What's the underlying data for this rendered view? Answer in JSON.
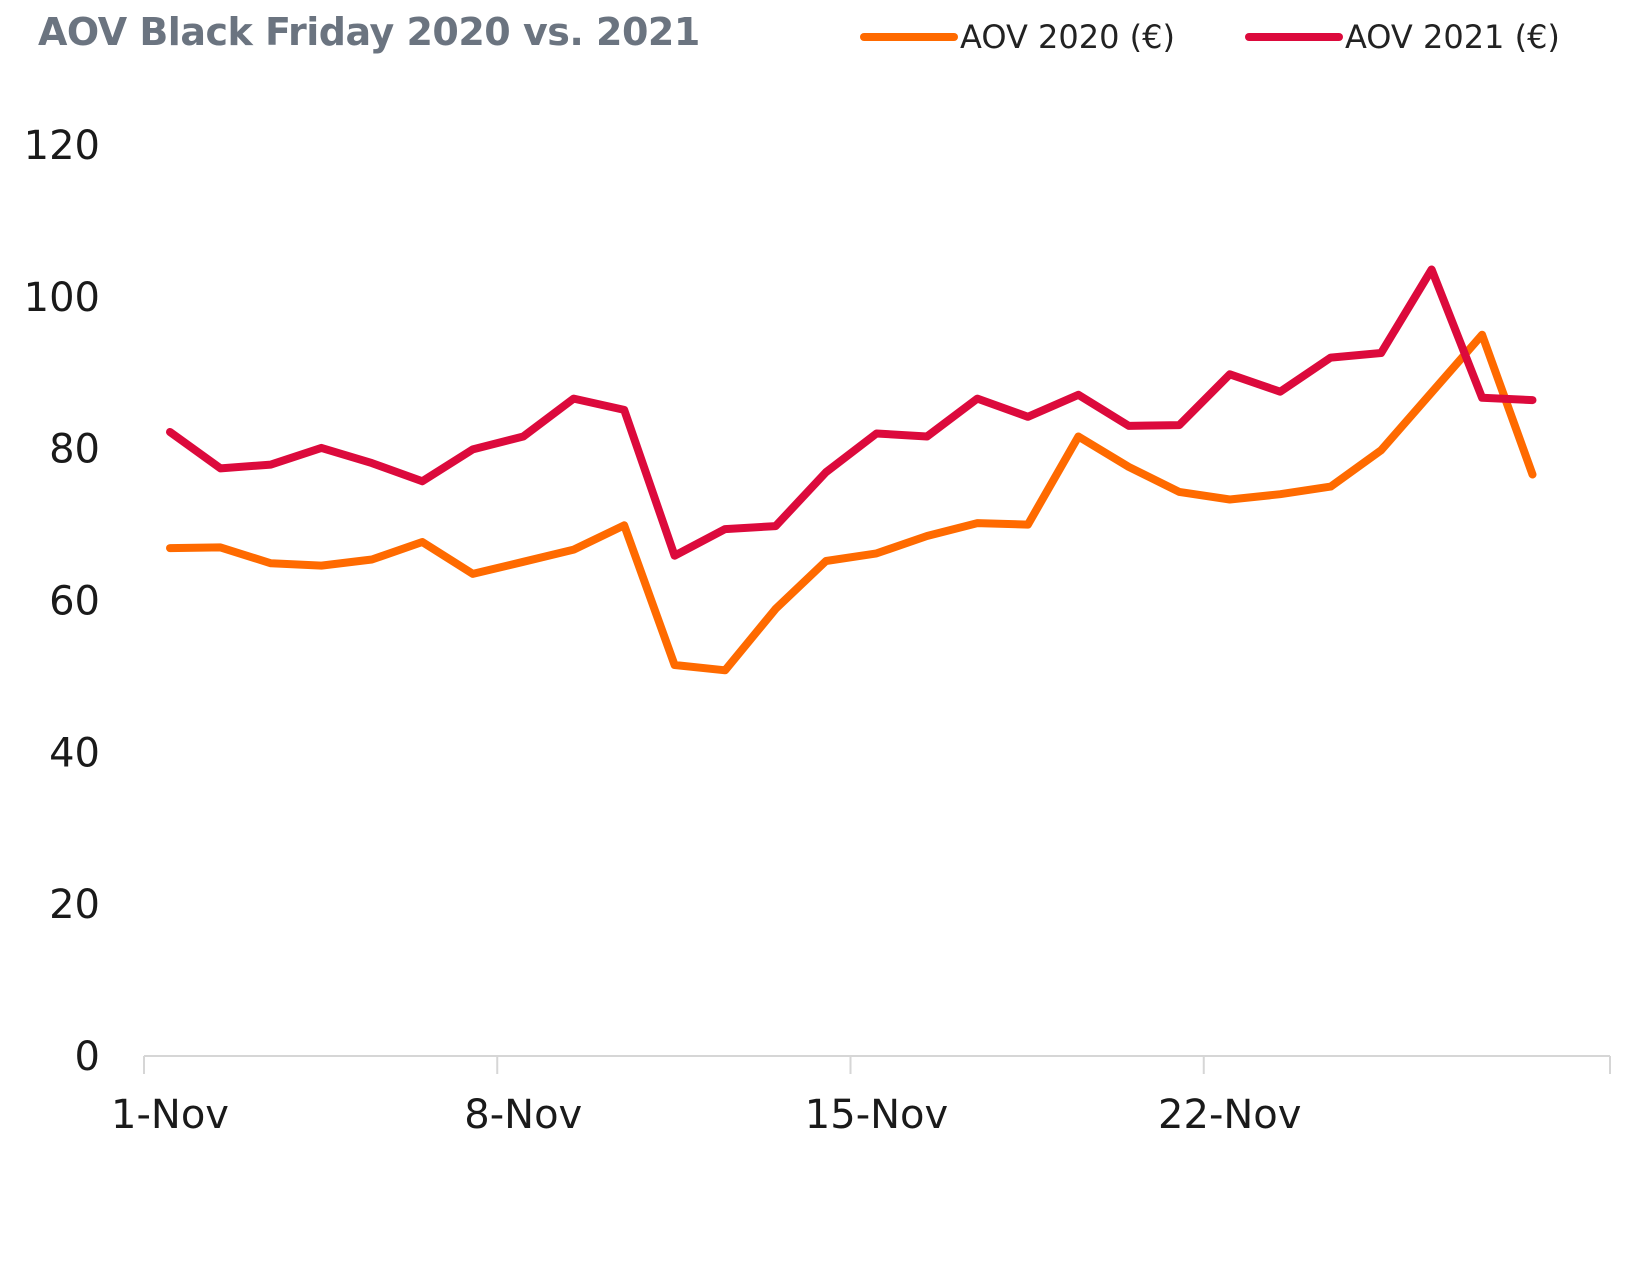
{
  "chart_data": {
    "type": "line",
    "title": "AOV Black Friday 2020 vs. 2021",
    "xlabel": "",
    "ylabel": "",
    "ylim": [
      0,
      120
    ],
    "yticks": [
      0,
      20,
      40,
      60,
      80,
      100,
      120
    ],
    "x": [
      "1-Nov",
      "2-Nov",
      "3-Nov",
      "4-Nov",
      "5-Nov",
      "6-Nov",
      "7-Nov",
      "8-Nov",
      "9-Nov",
      "10-Nov",
      "11-Nov",
      "12-Nov",
      "13-Nov",
      "14-Nov",
      "15-Nov",
      "16-Nov",
      "17-Nov",
      "18-Nov",
      "19-Nov",
      "20-Nov",
      "21-Nov",
      "22-Nov",
      "23-Nov",
      "24-Nov",
      "25-Nov",
      "26-Nov",
      "27-Nov",
      "28-Nov",
      "29-Nov"
    ],
    "xtick_labels": [
      "1-Nov",
      "8-Nov",
      "15-Nov",
      "22-Nov"
    ],
    "grid": false,
    "legend_position": "top-right",
    "series": [
      {
        "name": "AOV 2020 (€)",
        "color": "#ff6a00",
        "values": [
          66.9,
          67.0,
          64.9,
          64.6,
          65.4,
          67.7,
          63.5,
          65.1,
          66.7,
          69.9,
          51.5,
          50.8,
          58.9,
          65.2,
          66.2,
          68.5,
          70.2,
          70.0,
          81.6,
          77.6,
          74.3,
          73.3,
          74.0,
          75.0,
          79.8,
          87.4,
          95.0,
          76.6,
          null
        ]
      },
      {
        "name": "AOV 2021 (€)",
        "color": "#dc0a3c",
        "values": [
          82.2,
          77.4,
          77.9,
          80.1,
          78.1,
          75.7,
          79.9,
          81.6,
          86.6,
          85.1,
          65.9,
          69.4,
          69.8,
          76.9,
          82.0,
          81.6,
          86.6,
          84.2,
          87.1,
          83.0,
          83.1,
          89.8,
          87.5,
          92.0,
          92.6,
          103.6,
          86.7,
          86.4,
          null
        ]
      }
    ]
  }
}
